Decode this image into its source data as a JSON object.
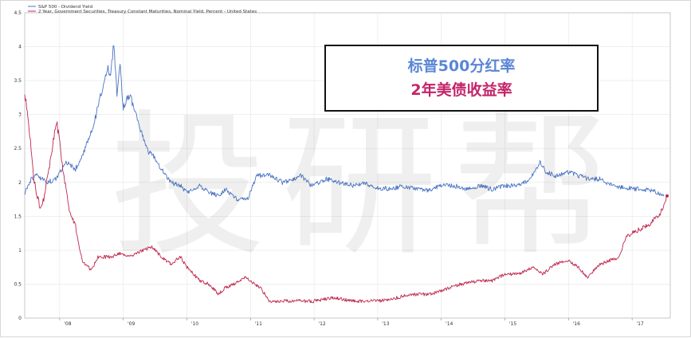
{
  "chart_data": {
    "type": "line",
    "title": "",
    "xlabel": "",
    "ylabel": "",
    "xlim": [
      2007.45,
      2017.6
    ],
    "ylim": [
      0,
      4.5
    ],
    "yticks": [
      0,
      0.5,
      1,
      1.5,
      2,
      2.5,
      3,
      3.5,
      4,
      4.5
    ],
    "ytick_labels": [
      "0",
      "0.5",
      "1",
      "1.5",
      "2",
      "2.5",
      "3",
      "3.5",
      "4",
      "4.5"
    ],
    "xticks": [
      2008,
      2009,
      2010,
      2011,
      2012,
      2013,
      2014,
      2015,
      2016,
      2017
    ],
    "xtick_labels": [
      "'08",
      "'09",
      "'10",
      "'11",
      "'12",
      "'13",
      "'14",
      "'15",
      "'16",
      "'17"
    ],
    "grid": true,
    "legend_position": "top-left",
    "series": [
      {
        "name": "S&P 500 - Dividend Yield",
        "color": "#4a74c4",
        "x": [
          2007.45,
          2007.55,
          2007.65,
          2007.8,
          2007.95,
          2008.1,
          2008.25,
          2008.4,
          2008.55,
          2008.65,
          2008.75,
          2008.8,
          2008.85,
          2008.9,
          2008.95,
          2009.0,
          2009.1,
          2009.2,
          2009.3,
          2009.4,
          2009.5,
          2009.6,
          2009.75,
          2009.9,
          2010.0,
          2010.2,
          2010.35,
          2010.5,
          2010.6,
          2010.8,
          2010.95,
          2011.1,
          2011.3,
          2011.5,
          2011.7,
          2011.8,
          2011.95,
          2012.2,
          2012.4,
          2012.6,
          2012.8,
          2013.0,
          2013.2,
          2013.4,
          2013.6,
          2013.8,
          2014.0,
          2014.2,
          2014.4,
          2014.6,
          2014.8,
          2015.0,
          2015.2,
          2015.4,
          2015.55,
          2015.65,
          2015.8,
          2016.0,
          2016.15,
          2016.3,
          2016.5,
          2016.7,
          2016.9,
          2017.1,
          2017.3,
          2017.5
        ],
        "values": [
          1.85,
          2.05,
          2.1,
          2.0,
          2.05,
          2.3,
          2.2,
          2.5,
          2.9,
          3.3,
          3.7,
          3.6,
          4.05,
          3.3,
          3.7,
          3.1,
          3.3,
          3.0,
          2.7,
          2.45,
          2.35,
          2.2,
          2.0,
          1.95,
          1.85,
          1.95,
          1.85,
          1.8,
          1.9,
          1.75,
          1.75,
          2.1,
          2.1,
          2.0,
          2.05,
          2.1,
          1.95,
          2.05,
          2.0,
          1.95,
          1.98,
          1.92,
          1.9,
          1.95,
          1.9,
          1.88,
          1.95,
          1.95,
          1.9,
          1.95,
          1.9,
          1.95,
          1.95,
          2.05,
          2.3,
          2.15,
          2.1,
          2.15,
          2.1,
          2.05,
          2.05,
          1.95,
          1.92,
          1.9,
          1.88,
          1.82
        ]
      },
      {
        "name": "2 Year, Government Securities, Treasury Constant Maturities, Nominal Yield, Percent - United States",
        "color": "#c0284e",
        "x": [
          2007.45,
          2007.5,
          2007.55,
          2007.6,
          2007.7,
          2007.75,
          2007.85,
          2007.95,
          2008.0,
          2008.05,
          2008.15,
          2008.25,
          2008.35,
          2008.5,
          2008.6,
          2008.8,
          2008.95,
          2009.1,
          2009.3,
          2009.45,
          2009.6,
          2009.75,
          2009.9,
          2010.0,
          2010.2,
          2010.35,
          2010.5,
          2010.6,
          2010.75,
          2010.9,
          2011.0,
          2011.15,
          2011.3,
          2011.5,
          2011.7,
          2012.0,
          2012.3,
          2012.6,
          2013.0,
          2013.3,
          2013.5,
          2013.8,
          2014.0,
          2014.3,
          2014.6,
          2014.8,
          2015.0,
          2015.2,
          2015.45,
          2015.6,
          2015.8,
          2016.0,
          2016.15,
          2016.3,
          2016.5,
          2016.8,
          2016.9,
          2017.0,
          2017.1,
          2017.2,
          2017.3,
          2017.45,
          2017.55
        ],
        "values": [
          3.3,
          3.0,
          2.5,
          2.0,
          1.6,
          1.75,
          2.3,
          2.9,
          2.6,
          2.2,
          1.6,
          1.35,
          0.85,
          0.7,
          0.9,
          0.9,
          0.95,
          0.9,
          1.0,
          1.05,
          0.9,
          0.8,
          0.9,
          0.75,
          0.55,
          0.5,
          0.35,
          0.45,
          0.5,
          0.6,
          0.55,
          0.45,
          0.25,
          0.25,
          0.25,
          0.25,
          0.3,
          0.25,
          0.25,
          0.3,
          0.35,
          0.35,
          0.4,
          0.5,
          0.55,
          0.55,
          0.65,
          0.65,
          0.75,
          0.65,
          0.8,
          0.85,
          0.75,
          0.6,
          0.8,
          0.9,
          1.2,
          1.25,
          1.3,
          1.35,
          1.4,
          1.55,
          1.8
        ]
      }
    ]
  },
  "annotation": {
    "line1": "标普500分红率",
    "line2": "2年美债收益率",
    "line1_color": "#5b86d6",
    "line2_color": "#c3256a"
  },
  "watermark": {
    "text": "投研帮"
  }
}
